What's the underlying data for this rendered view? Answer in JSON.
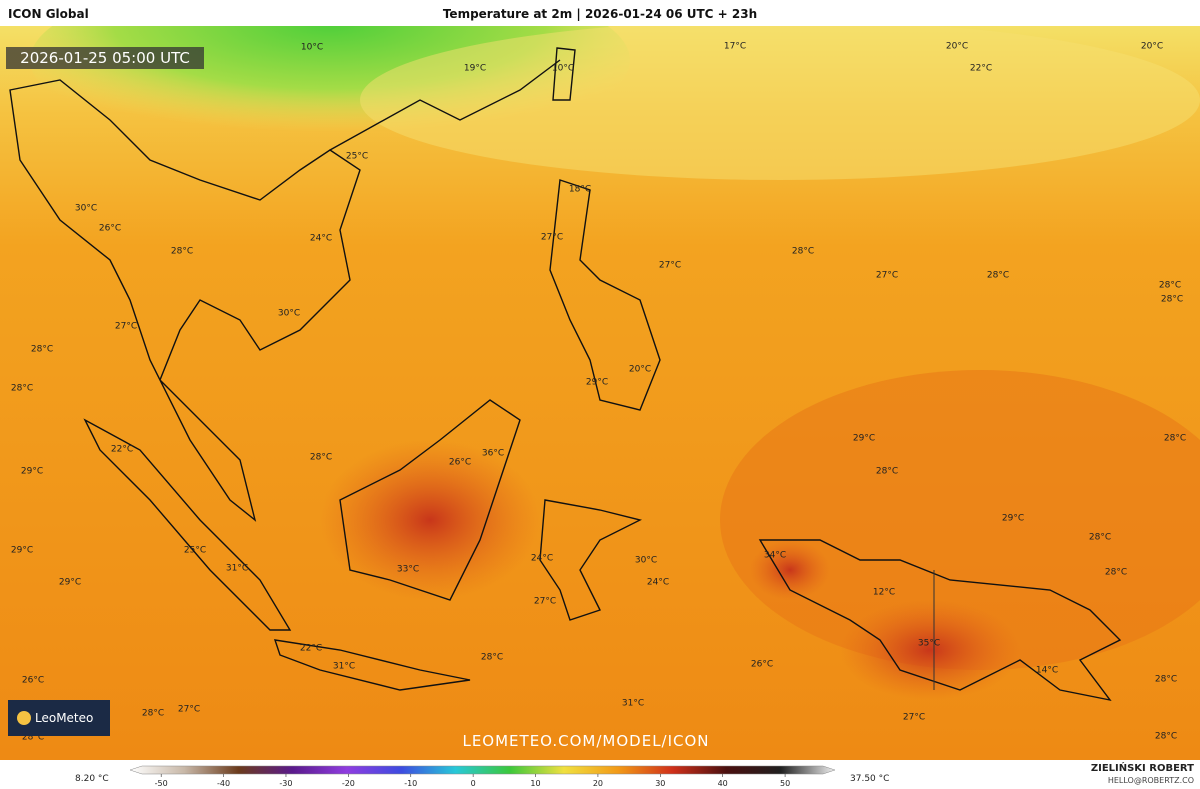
{
  "header": {
    "left": "ICON Global",
    "center": "Temperature at 2m | 2026-01-24 06 UTC + 23h"
  },
  "timestamp": "2026-01-25 05:00 UTC",
  "watermark": "LEOMETEO.COM/MODEL/ICON",
  "logo": "LeoMeteo",
  "map_labels": [
    "10°C",
    "19°C",
    "10°C",
    "17°C",
    "20°C",
    "22°C",
    "20°C",
    "25°C",
    "18°C",
    "30°C",
    "26°C",
    "24°C",
    "27°C",
    "28°C",
    "28°C",
    "27°C",
    "27°C",
    "28°C",
    "28°C",
    "28°C",
    "30°C",
    "27°C",
    "28°C",
    "28°C",
    "20°C",
    "29°C",
    "29°C",
    "28°C",
    "22°C",
    "28°C",
    "26°C",
    "36°C",
    "28°C",
    "29°C",
    "29°C",
    "28°C",
    "29°C",
    "25°C",
    "24°C",
    "30°C",
    "34°C",
    "31°C",
    "33°C",
    "29°C",
    "24°C",
    "28°C",
    "12°C",
    "27°C",
    "35°C",
    "22°C",
    "28°C",
    "31°C",
    "26°C",
    "14°C",
    "28°C",
    "26°C",
    "31°C",
    "28°C",
    "27°C",
    "27°C",
    "28°C",
    "28°C"
  ],
  "colorbar": {
    "min_label": "8.20 °C",
    "max_label": "37.50 °C",
    "lim": [
      -55,
      58
    ],
    "ticks": [
      -50,
      -40,
      -30,
      -20,
      -10,
      0,
      10,
      20,
      30,
      40,
      50
    ]
  },
  "credit": {
    "name": "ZIELIŃSKI ROBERT",
    "email": "HELLO@ROBERTZ.CO"
  }
}
